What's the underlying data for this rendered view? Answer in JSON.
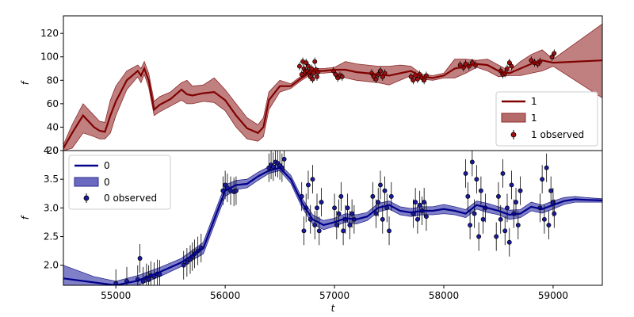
{
  "chart_data": {
    "type": "line",
    "xlabel": "t",
    "xlim": [
      54520,
      59450
    ],
    "xticks": [
      55000,
      56000,
      57000,
      58000,
      59000
    ],
    "panels": [
      {
        "id": "top",
        "ylabel": "f",
        "ylim": [
          20,
          135
        ],
        "yticks": [
          20,
          40,
          60,
          80,
          100,
          120
        ],
        "legend_position": "lower-right",
        "colors": {
          "line": "#800000",
          "band": "#b56a6a",
          "band_edge": "#8c2a2a",
          "point": "#a01010"
        },
        "legend": {
          "line": "1",
          "band": "1",
          "observed": "1 observed"
        },
        "model": {
          "t": [
            54520,
            54600,
            54700,
            54800,
            54850,
            54900,
            54950,
            55000,
            55100,
            55200,
            55230,
            55260,
            55300,
            55350,
            55400,
            55500,
            55600,
            55650,
            55700,
            55800,
            55900,
            56000,
            56100,
            56200,
            56300,
            56350,
            56400,
            56500,
            56600,
            56700,
            56800,
            56900,
            57000,
            57100,
            57200,
            57300,
            57400,
            57500,
            57600,
            57700,
            57800,
            57900,
            58000,
            58100,
            58200,
            58300,
            58400,
            58500,
            58600,
            58700,
            58800,
            58900,
            59000,
            59450
          ],
          "f": [
            22,
            35,
            50,
            40,
            37,
            36,
            50,
            62,
            80,
            88,
            84,
            90,
            80,
            55,
            59,
            64,
            72,
            68,
            67,
            69,
            70,
            63,
            50,
            39,
            35,
            40,
            63,
            75,
            75,
            82,
            88,
            88,
            89,
            89,
            87,
            86,
            85,
            84,
            86,
            88,
            83,
            82,
            84,
            90,
            92,
            94,
            93,
            88,
            86,
            90,
            94,
            97,
            95,
            97
          ],
          "lower": [
            20,
            22,
            35,
            32,
            30,
            30,
            35,
            50,
            72,
            83,
            78,
            85,
            74,
            50,
            53,
            58,
            63,
            60,
            60,
            62,
            61,
            54,
            40,
            30,
            28,
            32,
            55,
            70,
            73,
            80,
            86,
            86,
            87,
            82,
            80,
            79,
            78,
            76,
            80,
            84,
            81,
            80,
            82,
            82,
            86,
            91,
            88,
            83,
            84,
            84,
            86,
            88,
            92,
            65
          ],
          "upper": [
            25,
            42,
            60,
            50,
            45,
            44,
            63,
            75,
            88,
            93,
            90,
            96,
            86,
            62,
            66,
            70,
            78,
            80,
            75,
            76,
            82,
            72,
            60,
            48,
            42,
            48,
            70,
            80,
            77,
            84,
            90,
            90,
            91,
            96,
            94,
            93,
            92,
            92,
            93,
            92,
            85,
            84,
            86,
            98,
            98,
            97,
            98,
            93,
            88,
            96,
            102,
            106,
            98,
            128
          ]
        },
        "observed": [
          [
            56680,
            92
          ],
          [
            56700,
            85
          ],
          [
            56710,
            96
          ],
          [
            56720,
            90
          ],
          [
            56730,
            87
          ],
          [
            56740,
            95
          ],
          [
            56750,
            88
          ],
          [
            56760,
            92
          ],
          [
            56770,
            86
          ],
          [
            56780,
            83
          ],
          [
            56790,
            90
          ],
          [
            56800,
            81
          ],
          [
            56810,
            86
          ],
          [
            56820,
            96
          ],
          [
            56830,
            89
          ],
          [
            56840,
            83
          ],
          [
            56850,
            87
          ],
          [
            56990,
            88
          ],
          [
            57010,
            85
          ],
          [
            57030,
            82
          ],
          [
            57050,
            84
          ],
          [
            57070,
            83
          ],
          [
            57340,
            86
          ],
          [
            57360,
            83
          ],
          [
            57380,
            81
          ],
          [
            57400,
            85
          ],
          [
            57420,
            88
          ],
          [
            57440,
            83
          ],
          [
            57460,
            86
          ],
          [
            57700,
            83
          ],
          [
            57720,
            80
          ],
          [
            57740,
            84
          ],
          [
            57760,
            81
          ],
          [
            57780,
            85
          ],
          [
            57800,
            82
          ],
          [
            57820,
            80
          ],
          [
            57840,
            84
          ],
          [
            58150,
            93
          ],
          [
            58180,
            91
          ],
          [
            58200,
            94
          ],
          [
            58230,
            92
          ],
          [
            58260,
            95
          ],
          [
            58290,
            93
          ],
          [
            58520,
            88
          ],
          [
            58540,
            85
          ],
          [
            58560,
            86
          ],
          [
            58580,
            90
          ],
          [
            58600,
            95
          ],
          [
            58620,
            92
          ],
          [
            58800,
            97
          ],
          [
            58830,
            95
          ],
          [
            58860,
            94
          ],
          [
            58880,
            96
          ],
          [
            58990,
            100
          ],
          [
            59010,
            103
          ]
        ]
      },
      {
        "id": "bottom",
        "ylabel": "f",
        "ylim": [
          1.65,
          4.0
        ],
        "yticks": [
          2.0,
          2.5,
          3.0,
          3.5,
          4.0
        ],
        "legend_position": "upper-left",
        "colors": {
          "line": "#00008b",
          "band": "#6a6ac0",
          "band_edge": "#2a2a8c",
          "point": "#1a1aa0"
        },
        "legend": {
          "line": "0",
          "band": "0",
          "observed": "0 observed"
        },
        "model": {
          "t": [
            54520,
            54800,
            55000,
            55200,
            55400,
            55600,
            55800,
            56000,
            56100,
            56200,
            56300,
            56400,
            56500,
            56600,
            56700,
            56800,
            56900,
            57000,
            57100,
            57200,
            57300,
            57400,
            57500,
            57600,
            57700,
            57800,
            57900,
            58000,
            58100,
            58200,
            58300,
            58400,
            58500,
            58600,
            58700,
            58800,
            58900,
            59000,
            59100,
            59200,
            59300,
            59450
          ],
          "f": [
            1.77,
            1.7,
            1.65,
            1.73,
            1.88,
            2.05,
            2.3,
            3.3,
            3.4,
            3.42,
            3.55,
            3.65,
            3.7,
            3.5,
            3.1,
            2.8,
            2.7,
            2.75,
            2.82,
            2.8,
            2.85,
            3.0,
            3.05,
            2.95,
            2.92,
            2.95,
            2.95,
            2.98,
            2.95,
            2.9,
            3.05,
            3.0,
            2.95,
            2.88,
            2.9,
            3.02,
            2.98,
            3.05,
            3.12,
            3.15,
            3.14,
            3.13
          ],
          "lower": [
            1.55,
            1.62,
            1.58,
            1.65,
            1.8,
            1.98,
            2.2,
            3.2,
            3.32,
            3.35,
            3.48,
            3.6,
            3.65,
            3.43,
            3.02,
            2.72,
            2.62,
            2.68,
            2.75,
            2.72,
            2.78,
            2.93,
            2.98,
            2.88,
            2.85,
            2.88,
            2.88,
            2.9,
            2.88,
            2.83,
            2.98,
            2.92,
            2.88,
            2.8,
            2.83,
            2.95,
            2.91,
            2.98,
            3.06,
            3.1,
            3.1,
            3.1
          ],
          "upper": [
            2.0,
            1.8,
            1.72,
            1.82,
            1.96,
            2.12,
            2.4,
            3.4,
            3.48,
            3.5,
            3.62,
            3.72,
            3.76,
            3.57,
            3.18,
            2.88,
            2.78,
            2.82,
            2.9,
            2.88,
            2.92,
            3.08,
            3.12,
            3.02,
            2.99,
            3.02,
            3.02,
            3.06,
            3.02,
            2.97,
            3.12,
            3.08,
            3.02,
            2.96,
            2.97,
            3.1,
            3.05,
            3.12,
            3.18,
            3.2,
            3.18,
            3.16
          ]
        },
        "observed": [
          [
            55000,
            1.68
          ],
          [
            55100,
            1.72
          ],
          [
            55200,
            1.75
          ],
          [
            55220,
            2.12
          ],
          [
            55250,
            1.72
          ],
          [
            55280,
            1.78
          ],
          [
            55300,
            1.75
          ],
          [
            55320,
            1.82
          ],
          [
            55350,
            1.8
          ],
          [
            55380,
            1.85
          ],
          [
            55400,
            1.84
          ],
          [
            55620,
            2.0
          ],
          [
            55650,
            2.05
          ],
          [
            55680,
            2.1
          ],
          [
            55700,
            2.15
          ],
          [
            55720,
            2.2
          ],
          [
            55750,
            2.25
          ],
          [
            55780,
            2.3
          ],
          [
            55980,
            3.3
          ],
          [
            56000,
            3.4
          ],
          [
            56020,
            3.35
          ],
          [
            56050,
            3.3
          ],
          [
            56080,
            3.28
          ],
          [
            56100,
            3.3
          ],
          [
            56400,
            3.7
          ],
          [
            56420,
            3.75
          ],
          [
            56440,
            3.72
          ],
          [
            56460,
            3.8
          ],
          [
            56480,
            3.78
          ],
          [
            56500,
            3.74
          ],
          [
            56520,
            3.7
          ],
          [
            56540,
            3.85
          ],
          [
            56700,
            3.2
          ],
          [
            56720,
            2.6
          ],
          [
            56740,
            3.0
          ],
          [
            56760,
            3.4
          ],
          [
            56780,
            2.8
          ],
          [
            56800,
            3.5
          ],
          [
            56820,
            2.7
          ],
          [
            56840,
            3.0
          ],
          [
            56860,
            2.6
          ],
          [
            56880,
            3.1
          ],
          [
            57000,
            3.0
          ],
          [
            57020,
            2.7
          ],
          [
            57040,
            2.9
          ],
          [
            57060,
            3.2
          ],
          [
            57080,
            2.6
          ],
          [
            57100,
            2.8
          ],
          [
            57120,
            3.0
          ],
          [
            57140,
            2.7
          ],
          [
            57160,
            2.9
          ],
          [
            57180,
            2.8
          ],
          [
            57350,
            3.2
          ],
          [
            57380,
            2.9
          ],
          [
            57400,
            3.1
          ],
          [
            57420,
            3.4
          ],
          [
            57440,
            2.8
          ],
          [
            57460,
            3.3
          ],
          [
            57480,
            3.0
          ],
          [
            57500,
            2.6
          ],
          [
            57520,
            3.2
          ],
          [
            57720,
            2.9
          ],
          [
            57740,
            3.1
          ],
          [
            57760,
            2.8
          ],
          [
            57780,
            3.05
          ],
          [
            57800,
            2.95
          ],
          [
            57820,
            3.1
          ],
          [
            57840,
            2.85
          ],
          [
            58200,
            3.6
          ],
          [
            58220,
            3.2
          ],
          [
            58240,
            2.7
          ],
          [
            58260,
            3.8
          ],
          [
            58280,
            2.9
          ],
          [
            58300,
            3.5
          ],
          [
            58320,
            2.5
          ],
          [
            58340,
            3.3
          ],
          [
            58360,
            2.8
          ],
          [
            58380,
            3.0
          ],
          [
            58480,
            2.5
          ],
          [
            58500,
            3.2
          ],
          [
            58520,
            2.8
          ],
          [
            58540,
            3.6
          ],
          [
            58560,
            2.6
          ],
          [
            58580,
            3.0
          ],
          [
            58600,
            2.4
          ],
          [
            58620,
            3.4
          ],
          [
            58640,
            2.9
          ],
          [
            58660,
            3.1
          ],
          [
            58680,
            2.7
          ],
          [
            58700,
            3.3
          ],
          [
            58880,
            3.0
          ],
          [
            58900,
            3.5
          ],
          [
            58920,
            2.8
          ],
          [
            58940,
            3.7
          ],
          [
            58960,
            2.7
          ],
          [
            58980,
            3.3
          ],
          [
            59000,
            3.1
          ],
          [
            59010,
            2.9
          ]
        ]
      }
    ]
  }
}
